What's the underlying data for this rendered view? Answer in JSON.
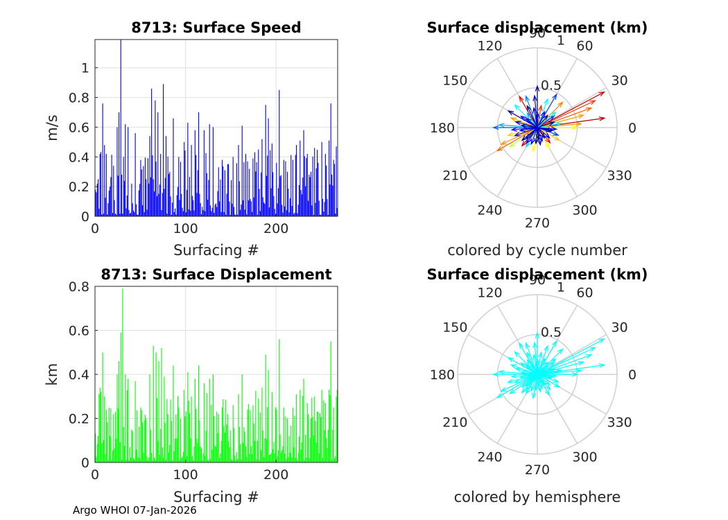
{
  "footer": "Argo WHOI 07-Jan-2026",
  "chart_data": [
    {
      "type": "bar",
      "title": "8713: Surface Speed",
      "xlabel": "Surfacing #",
      "ylabel": "m/s",
      "xlim": [
        0,
        268
      ],
      "ylim": [
        0,
        1.19
      ],
      "xticks": [
        "0",
        "100",
        "200"
      ],
      "yticks": [
        "0",
        "0.2",
        "0.4",
        "0.6",
        "0.8",
        "1"
      ],
      "color": "#0000ff",
      "n_points": 268,
      "seed": 8713,
      "scale": 0.45,
      "peaks": [
        [
          3,
          0.25
        ],
        [
          5,
          0.42
        ],
        [
          8,
          0.76
        ],
        [
          10,
          0.48
        ],
        [
          12,
          0.42
        ],
        [
          16,
          0.2
        ],
        [
          20,
          0.34
        ],
        [
          24,
          0.6
        ],
        [
          26,
          0.7
        ],
        [
          28,
          1.19
        ],
        [
          31,
          0.4
        ],
        [
          33,
          0.62
        ],
        [
          36,
          0.6
        ],
        [
          40,
          0.22
        ],
        [
          44,
          0.56
        ],
        [
          50,
          0.38
        ],
        [
          56,
          0.25
        ],
        [
          60,
          0.54
        ],
        [
          62,
          0.86
        ],
        [
          66,
          0.78
        ],
        [
          69,
          0.7
        ],
        [
          72,
          0.42
        ],
        [
          75,
          0.89
        ],
        [
          78,
          0.54
        ],
        [
          82,
          0.3
        ],
        [
          86,
          0.66
        ],
        [
          92,
          0.4
        ],
        [
          98,
          0.5
        ],
        [
          102,
          0.63
        ],
        [
          106,
          0.48
        ],
        [
          110,
          0.58
        ],
        [
          114,
          0.7
        ],
        [
          120,
          0.58
        ],
        [
          126,
          0.62
        ],
        [
          130,
          0.6
        ],
        [
          136,
          0.33
        ],
        [
          140,
          0.38
        ],
        [
          146,
          0.35
        ],
        [
          152,
          0.4
        ],
        [
          158,
          0.48
        ],
        [
          162,
          0.61
        ],
        [
          168,
          0.37
        ],
        [
          174,
          0.39
        ],
        [
          180,
          0.45
        ],
        [
          184,
          0.52
        ],
        [
          188,
          0.75
        ],
        [
          191,
          0.66
        ],
        [
          195,
          0.49
        ],
        [
          200,
          0.36
        ],
        [
          203,
          0.85
        ],
        [
          208,
          0.38
        ],
        [
          212,
          0.3
        ],
        [
          218,
          0.38
        ],
        [
          222,
          0.48
        ],
        [
          226,
          0.51
        ],
        [
          230,
          0.58
        ],
        [
          234,
          0.42
        ],
        [
          238,
          0.3
        ],
        [
          242,
          0.46
        ],
        [
          246,
          0.36
        ],
        [
          250,
          0.5
        ],
        [
          254,
          0.42
        ],
        [
          258,
          0.51
        ],
        [
          260,
          0.76
        ],
        [
          263,
          0.38
        ],
        [
          266,
          0.47
        ]
      ]
    },
    {
      "type": "bar",
      "title": "8713: Surface Displacement",
      "xlabel": "Surfacing #",
      "ylabel": "km",
      "xlim": [
        0,
        268
      ],
      "ylim": [
        0,
        0.8
      ],
      "xticks": [
        "0",
        "100",
        "200"
      ],
      "yticks": [
        "0",
        "0.2",
        "0.4",
        "0.6",
        "0.8"
      ],
      "color": "#00ff00",
      "n_points": 268,
      "seed": 8713,
      "scale": 0.32,
      "peaks": [
        [
          3,
          0.12
        ],
        [
          5,
          0.34
        ],
        [
          8,
          0.5
        ],
        [
          10,
          0.3
        ],
        [
          12,
          0.24
        ],
        [
          16,
          0.12
        ],
        [
          20,
          0.22
        ],
        [
          24,
          0.4
        ],
        [
          26,
          0.46
        ],
        [
          28,
          0.59
        ],
        [
          30,
          0.79
        ],
        [
          33,
          0.4
        ],
        [
          36,
          0.38
        ],
        [
          40,
          0.15
        ],
        [
          44,
          0.37
        ],
        [
          50,
          0.25
        ],
        [
          56,
          0.2
        ],
        [
          60,
          0.4
        ],
        [
          64,
          0.53
        ],
        [
          67,
          0.5
        ],
        [
          70,
          0.46
        ],
        [
          73,
          0.52
        ],
        [
          76,
          0.39
        ],
        [
          80,
          0.22
        ],
        [
          86,
          0.44
        ],
        [
          92,
          0.25
        ],
        [
          98,
          0.33
        ],
        [
          102,
          0.41
        ],
        [
          106,
          0.3
        ],
        [
          110,
          0.38
        ],
        [
          114,
          0.44
        ],
        [
          120,
          0.36
        ],
        [
          126,
          0.38
        ],
        [
          130,
          0.4
        ],
        [
          136,
          0.22
        ],
        [
          140,
          0.25
        ],
        [
          146,
          0.22
        ],
        [
          152,
          0.26
        ],
        [
          158,
          0.31
        ],
        [
          162,
          0.4
        ],
        [
          168,
          0.24
        ],
        [
          174,
          0.26
        ],
        [
          180,
          0.29
        ],
        [
          184,
          0.34
        ],
        [
          188,
          0.49
        ],
        [
          191,
          0.42
        ],
        [
          195,
          0.32
        ],
        [
          200,
          0.24
        ],
        [
          203,
          0.56
        ],
        [
          208,
          0.25
        ],
        [
          212,
          0.2
        ],
        [
          218,
          0.25
        ],
        [
          222,
          0.31
        ],
        [
          226,
          0.33
        ],
        [
          230,
          0.38
        ],
        [
          234,
          0.27
        ],
        [
          238,
          0.2
        ],
        [
          242,
          0.3
        ],
        [
          246,
          0.23
        ],
        [
          250,
          0.33
        ],
        [
          254,
          0.27
        ],
        [
          258,
          0.33
        ],
        [
          260,
          0.55
        ],
        [
          263,
          0.25
        ],
        [
          266,
          0.3
        ]
      ]
    },
    {
      "type": "polar-compass",
      "title": "Surface displacement (km)",
      "subtitle": "colored by cycle number",
      "rmax": 1,
      "rlabels": [
        "0.5",
        "1"
      ],
      "angle_labels": [
        "0",
        "30",
        "60",
        "90",
        "120",
        "150",
        "180",
        "210",
        "240",
        "270",
        "300",
        "330"
      ],
      "coloring": "cycle",
      "arrows": [
        {
          "angle": 90,
          "r": 0.52,
          "color": "#00008f"
        },
        {
          "angle": 95,
          "r": 0.4,
          "color": "#0000cf"
        },
        {
          "angle": 28,
          "r": 0.95,
          "color": "#cc0000"
        },
        {
          "angle": 25,
          "r": 0.8,
          "color": "#ff3000"
        },
        {
          "angle": 20,
          "r": 0.72,
          "color": "#ff6000"
        },
        {
          "angle": 15,
          "r": 0.6,
          "color": "#ffa000"
        },
        {
          "angle": 8,
          "r": 0.85,
          "color": "#b00000"
        },
        {
          "angle": 5,
          "r": 0.55,
          "color": "#ff9000"
        },
        {
          "angle": 0,
          "r": 0.5,
          "color": "#ffff00"
        },
        {
          "angle": 176,
          "r": 0.48,
          "color": "#00b0ff"
        },
        {
          "angle": 180,
          "r": 0.55,
          "color": "#0060ff"
        },
        {
          "angle": 210,
          "r": 0.58,
          "color": "#ff6000"
        },
        {
          "angle": 205,
          "r": 0.5,
          "color": "#ff9000"
        },
        {
          "angle": 215,
          "r": 0.42,
          "color": "#c0ff40"
        },
        {
          "angle": 260,
          "r": 0.3,
          "color": "#ffff00"
        },
        {
          "angle": 60,
          "r": 0.48,
          "color": "#0040ff"
        },
        {
          "angle": 120,
          "r": 0.45,
          "color": "#ff0000"
        },
        {
          "angle": 135,
          "r": 0.4,
          "color": "#00ffff"
        },
        {
          "angle": 150,
          "r": 0.42,
          "color": "#0000a0"
        },
        {
          "angle": 195,
          "r": 0.38,
          "color": "#ffd000"
        },
        {
          "angle": 230,
          "r": 0.3,
          "color": "#e00000"
        },
        {
          "angle": 300,
          "r": 0.3,
          "color": "#ffff00"
        },
        {
          "angle": 330,
          "r": 0.32,
          "color": "#ffcc00"
        },
        {
          "angle": 45,
          "r": 0.45,
          "color": "#ff8000"
        },
        {
          "angle": 70,
          "r": 0.38,
          "color": "#00ffff"
        },
        {
          "angle": 110,
          "r": 0.42,
          "color": "#0080ff"
        },
        {
          "angle": 160,
          "r": 0.35,
          "color": "#ffa000"
        },
        {
          "angle": 185,
          "r": 0.32,
          "color": "#0000ff"
        },
        {
          "angle": 200,
          "r": 0.3,
          "color": "#0000cf"
        },
        {
          "angle": 220,
          "r": 0.25,
          "color": "#00008f"
        },
        {
          "angle": 240,
          "r": 0.28,
          "color": "#00e0ff"
        },
        {
          "angle": 250,
          "r": 0.22,
          "color": "#0000ff"
        },
        {
          "angle": 280,
          "r": 0.22,
          "color": "#0000cf"
        },
        {
          "angle": 310,
          "r": 0.25,
          "color": "#ff0000"
        },
        {
          "angle": 340,
          "r": 0.28,
          "color": "#0040ff"
        },
        {
          "angle": 350,
          "r": 0.2,
          "color": "#00008f"
        },
        {
          "angle": 10,
          "r": 0.3,
          "color": "#00ffff"
        },
        {
          "angle": 35,
          "r": 0.26,
          "color": "#0000ff"
        },
        {
          "angle": 50,
          "r": 0.2,
          "color": "#00008f"
        },
        {
          "angle": 80,
          "r": 0.28,
          "color": "#ff3000"
        },
        {
          "angle": 100,
          "r": 0.25,
          "color": "#0000cf"
        },
        {
          "angle": 125,
          "r": 0.22,
          "color": "#00a0ff"
        },
        {
          "angle": 145,
          "r": 0.25,
          "color": "#0000ff"
        },
        {
          "angle": 165,
          "r": 0.28,
          "color": "#00008f"
        },
        {
          "angle": 190,
          "r": 0.22,
          "color": "#0000ff"
        },
        {
          "angle": 225,
          "r": 0.2,
          "color": "#0000cf"
        },
        {
          "angle": 265,
          "r": 0.2,
          "color": "#00008f"
        },
        {
          "angle": 290,
          "r": 0.18,
          "color": "#0000ff"
        },
        {
          "angle": 320,
          "r": 0.2,
          "color": "#0000cf"
        },
        {
          "angle": 355,
          "r": 0.24,
          "color": "#0000ff"
        },
        {
          "angle": 18,
          "r": 0.22,
          "color": "#00008f"
        },
        {
          "angle": 40,
          "r": 0.3,
          "color": "#00ffff"
        },
        {
          "angle": 65,
          "r": 0.22,
          "color": "#0000ff"
        },
        {
          "angle": 88,
          "r": 0.18,
          "color": "#0000cf"
        },
        {
          "angle": 115,
          "r": 0.3,
          "color": "#00008f"
        },
        {
          "angle": 140,
          "r": 0.18,
          "color": "#0000ff"
        },
        {
          "angle": 172,
          "r": 0.2,
          "color": "#00008f"
        },
        {
          "angle": 235,
          "r": 0.24,
          "color": "#0000ff"
        },
        {
          "angle": 275,
          "r": 0.15,
          "color": "#00008f"
        },
        {
          "angle": 305,
          "r": 0.16,
          "color": "#0000cf"
        },
        {
          "angle": 345,
          "r": 0.18,
          "color": "#00008f"
        }
      ]
    },
    {
      "type": "polar-compass",
      "title": "Surface displacement (km)",
      "subtitle": "colored by hemisphere",
      "rmax": 1,
      "rlabels": [
        "0.5",
        "1"
      ],
      "angle_labels": [
        "0",
        "30",
        "60",
        "90",
        "120",
        "150",
        "180",
        "210",
        "240",
        "270",
        "300",
        "330"
      ],
      "coloring": "hemisphere",
      "color": "#00ffff",
      "arrows_from": 2
    }
  ]
}
